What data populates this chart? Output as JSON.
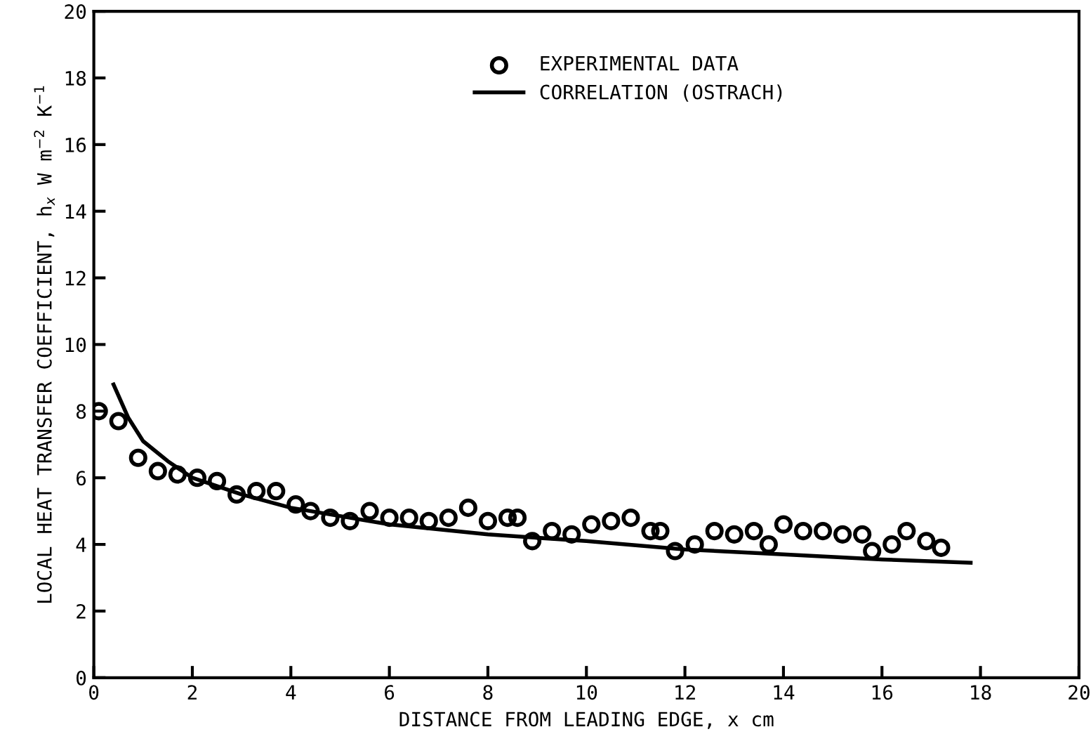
{
  "chart_data": {
    "type": "scatter",
    "xlabel": "DISTANCE FROM LEADING EDGE, x cm",
    "ylabel": "LOCAL HEAT TRANSFER COEFFICIENT, h$_{x}$ W m$^{−2}$ K$^{−1}$",
    "xlim": [
      0,
      20
    ],
    "ylim": [
      0,
      20
    ],
    "xticks": [
      0,
      2,
      4,
      6,
      8,
      10,
      12,
      14,
      16,
      18,
      20
    ],
    "yticks": [
      0,
      2,
      4,
      6,
      8,
      10,
      12,
      14,
      16,
      18,
      20
    ],
    "grid": false,
    "legend": "top right",
    "series": [
      {
        "name": "EXPERIMENTAL DATA",
        "marker": "circle",
        "color": "#000000",
        "x": [
          0.1,
          0.5,
          0.9,
          1.3,
          1.7,
          2.1,
          2.5,
          2.9,
          3.3,
          3.7,
          4.1,
          4.4,
          4.8,
          5.2,
          5.6,
          6.0,
          6.4,
          6.8,
          7.2,
          7.6,
          8.0,
          8.4,
          8.6,
          8.9,
          9.3,
          9.7,
          10.1,
          10.5,
          10.9,
          11.3,
          11.5,
          11.8,
          12.2,
          12.6,
          13.0,
          13.4,
          13.7,
          14.0,
          14.4,
          14.8,
          15.2,
          15.6,
          15.8,
          16.2,
          16.5,
          16.9,
          17.2
        ],
        "values": [
          8.0,
          7.7,
          6.6,
          6.2,
          6.1,
          6.0,
          5.9,
          5.5,
          5.6,
          5.6,
          5.2,
          5.0,
          4.8,
          4.7,
          5.0,
          4.8,
          4.8,
          4.7,
          4.8,
          5.1,
          4.7,
          4.8,
          4.8,
          4.1,
          4.4,
          4.3,
          4.6,
          4.7,
          4.8,
          4.4,
          4.4,
          3.8,
          4.0,
          4.4,
          4.3,
          4.4,
          4.0,
          4.6,
          4.4,
          4.4,
          4.3,
          4.3,
          3.8,
          4.0,
          4.4,
          4.1,
          3.9
        ]
      },
      {
        "name": "CORRELATION (OSTRACH)",
        "type": "line",
        "marker": "none",
        "line_style": "solid",
        "color": "#000000",
        "x": [
          0.4,
          0.7,
          1.0,
          1.5,
          2.0,
          3.0,
          4.0,
          6.0,
          8.0,
          10.0,
          12.0,
          14.0,
          16.0,
          17.8
        ],
        "values": [
          8.8,
          7.8,
          7.1,
          6.5,
          6.0,
          5.5,
          5.1,
          4.6,
          4.3,
          4.1,
          3.85,
          3.7,
          3.55,
          3.45
        ]
      }
    ]
  }
}
